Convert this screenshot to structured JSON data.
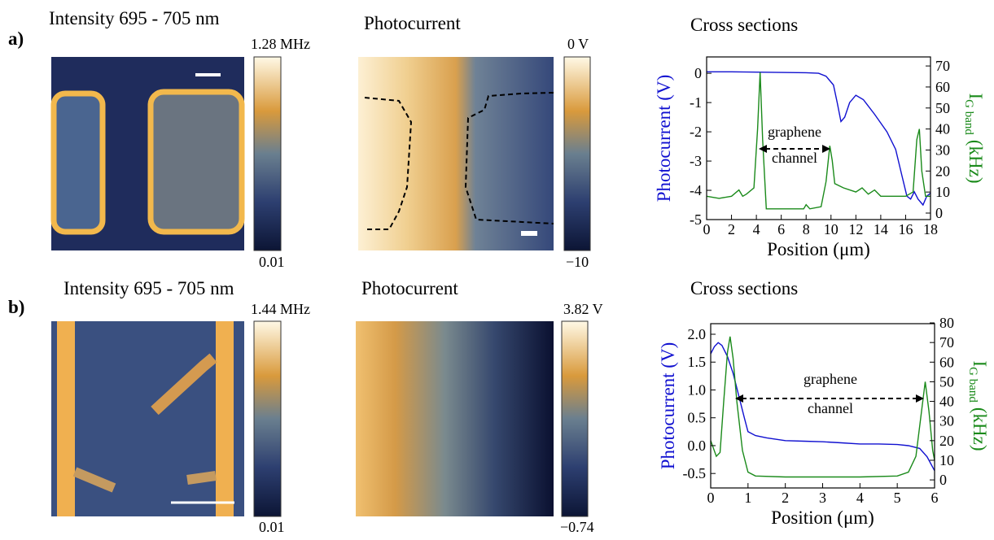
{
  "panels": [
    {
      "label": "a)",
      "intensity_title": "Intensity 695 - 705 nm",
      "intensity_max": "1.28 MHz",
      "intensity_min": "0.01",
      "photo_title": "Photocurrent",
      "photo_max": "0 V",
      "photo_min": "−10",
      "cross_title": "Cross sections"
    },
    {
      "label": "b)",
      "intensity_title": "Intensity 695 - 705 nm",
      "intensity_max": "1.44 MHz",
      "intensity_min": "0.01",
      "photo_title": "Photocurrent",
      "photo_max": "3.82 V",
      "photo_min": "−0.74",
      "cross_title": "Cross sections"
    }
  ],
  "chart_data": [
    {
      "type": "line",
      "xlabel": "Position (μm)",
      "ylabel": "Photocurrent (V)",
      "y2label": [
        "I",
        "G band",
        "(kHz)"
      ],
      "annotation": [
        "graphene",
        "channel"
      ],
      "xlim": [
        0,
        18
      ],
      "xticks": [
        0,
        2,
        4,
        6,
        8,
        10,
        12,
        14,
        16,
        18
      ],
      "ylim": [
        -5,
        0.56
      ],
      "yticks": [
        -5,
        -4,
        -3,
        -2,
        -1,
        0
      ],
      "y2lim": [
        -3.1,
        74.3
      ],
      "y2ticks": [
        0,
        10,
        20,
        30,
        40,
        50,
        60,
        70
      ],
      "series": [
        {
          "color": "#1010d0",
          "x": [
            0,
            2,
            4,
            6,
            8,
            9,
            9.6,
            10.2,
            10.5,
            10.8,
            11.1,
            11.5,
            12,
            12.6,
            13.5,
            14.5,
            15.2,
            15.7,
            16.1,
            16.4,
            16.7,
            17,
            17.4,
            17.7,
            18
          ],
          "values": [
            0.05,
            0.05,
            0.04,
            0.03,
            0.02,
            0,
            -0.1,
            -0.4,
            -1,
            -1.65,
            -1.5,
            -1,
            -0.75,
            -0.9,
            -1.4,
            -2,
            -2.6,
            -3.5,
            -4.2,
            -4.3,
            -4.05,
            -4.3,
            -4.5,
            -4.2,
            -4.1
          ]
        },
        {
          "color": "#1a8a1a",
          "axis": "y2",
          "x": [
            0,
            1,
            2,
            2.6,
            2.9,
            3.2,
            3.8,
            4.1,
            4.3,
            4.5,
            4.8,
            5.5,
            7,
            7.8,
            8,
            8.3,
            9.2,
            9.6,
            9.9,
            10.1,
            10.3,
            11,
            12,
            12.5,
            13,
            13.5,
            14,
            15,
            16,
            16.6,
            16.9,
            17.1,
            17.3,
            17.6,
            18
          ],
          "values": [
            8,
            7,
            8,
            11,
            8,
            9,
            12,
            40,
            67,
            35,
            2,
            2,
            2,
            2,
            4,
            2,
            3,
            15,
            32,
            25,
            14,
            12,
            10,
            12,
            9,
            11,
            8,
            8,
            8,
            10,
            35,
            40,
            20,
            8,
            8
          ]
        }
      ]
    },
    {
      "type": "line",
      "xlabel": "Position (μm)",
      "ylabel": "Photocurrent (V)",
      "y2label": [
        "I",
        "G band",
        "(kHz)"
      ],
      "annotation": [
        "graphene",
        "channel"
      ],
      "xlim": [
        0,
        6
      ],
      "xticks": [
        0,
        1,
        2,
        3,
        4,
        5,
        6
      ],
      "ylim": [
        -0.76,
        2.19
      ],
      "yticks": [
        -0.5,
        {
          "value": 0,
          "label": "0.0"
        },
        0.5,
        {
          "value": 1,
          "label": "1.0"
        },
        1.5,
        {
          "value": 2,
          "label": "2.0"
        }
      ],
      "y2lim": [
        -4.1,
        79.6
      ],
      "y2ticks": [
        0,
        10,
        20,
        30,
        40,
        50,
        60,
        70,
        80
      ],
      "series": [
        {
          "color": "#1010d0",
          "x": [
            0,
            0.1,
            0.2,
            0.3,
            0.45,
            0.6,
            0.75,
            0.9,
            1,
            1.2,
            1.5,
            2,
            2.5,
            3,
            3.5,
            4,
            4.5,
            5,
            5.3,
            5.6,
            5.8,
            6
          ],
          "values": [
            1.65,
            1.78,
            1.85,
            1.8,
            1.6,
            1.3,
            0.9,
            0.5,
            0.25,
            0.18,
            0.14,
            0.09,
            0.08,
            0.07,
            0.05,
            0.03,
            0.03,
            0.02,
            0,
            -0.05,
            -0.2,
            -0.45
          ]
        },
        {
          "color": "#1a8a1a",
          "axis": "y2",
          "x": [
            0,
            0.15,
            0.25,
            0.35,
            0.45,
            0.52,
            0.6,
            0.7,
            0.85,
            1,
            1.2,
            2,
            3,
            4,
            5,
            5.3,
            5.5,
            5.65,
            5.75,
            5.85,
            5.95,
            6
          ],
          "values": [
            20,
            12,
            14,
            40,
            65,
            73,
            62,
            40,
            15,
            4,
            2,
            1.5,
            1.5,
            1.5,
            2,
            4,
            12,
            35,
            50,
            35,
            15,
            10
          ]
        }
      ]
    }
  ]
}
